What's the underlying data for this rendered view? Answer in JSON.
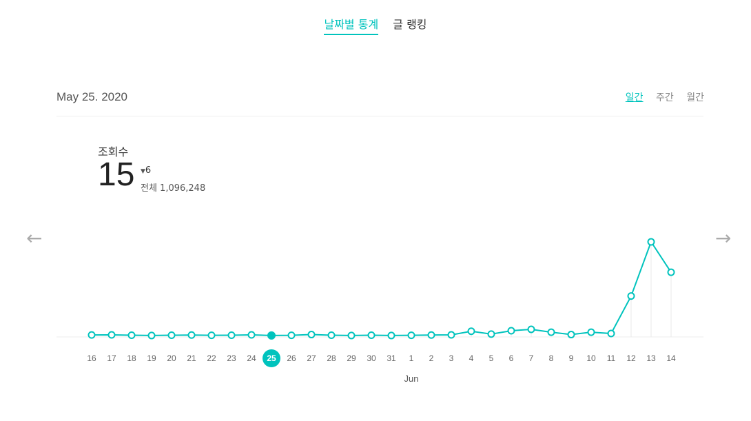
{
  "tabs": [
    {
      "label": "날짜별 통계",
      "active": true
    },
    {
      "label": "글 랭킹",
      "active": false
    }
  ],
  "date": "May 25. 2020",
  "periods": [
    {
      "label": "일간",
      "active": true
    },
    {
      "label": "주간",
      "active": false
    },
    {
      "label": "월간",
      "active": false
    }
  ],
  "metric": {
    "label": "조회수",
    "value": "15",
    "delta": "6",
    "total": "전체 1,096,248"
  },
  "nav": {
    "prev_icon": "arrow-left-icon",
    "next_icon": "arrow-right-icon"
  },
  "colors": {
    "accent": "#00c3bd"
  },
  "chart_data": {
    "type": "line",
    "categories": [
      "16",
      "17",
      "18",
      "19",
      "20",
      "21",
      "22",
      "23",
      "24",
      "25",
      "26",
      "27",
      "28",
      "29",
      "30",
      "31",
      "1",
      "2",
      "3",
      "4",
      "5",
      "6",
      "7",
      "8",
      "9",
      "10",
      "11",
      "12",
      "13",
      "14"
    ],
    "values": [
      21,
      22,
      18,
      15,
      18,
      20,
      17,
      18,
      22,
      15,
      17,
      25,
      18,
      15,
      18,
      15,
      17,
      20,
      22,
      60,
      30,
      65,
      80,
      50,
      25,
      50,
      36,
      430,
      1000,
      680
    ],
    "selected_index": 9,
    "month_label": "Jun",
    "ylim": [
      0,
      1000
    ]
  }
}
